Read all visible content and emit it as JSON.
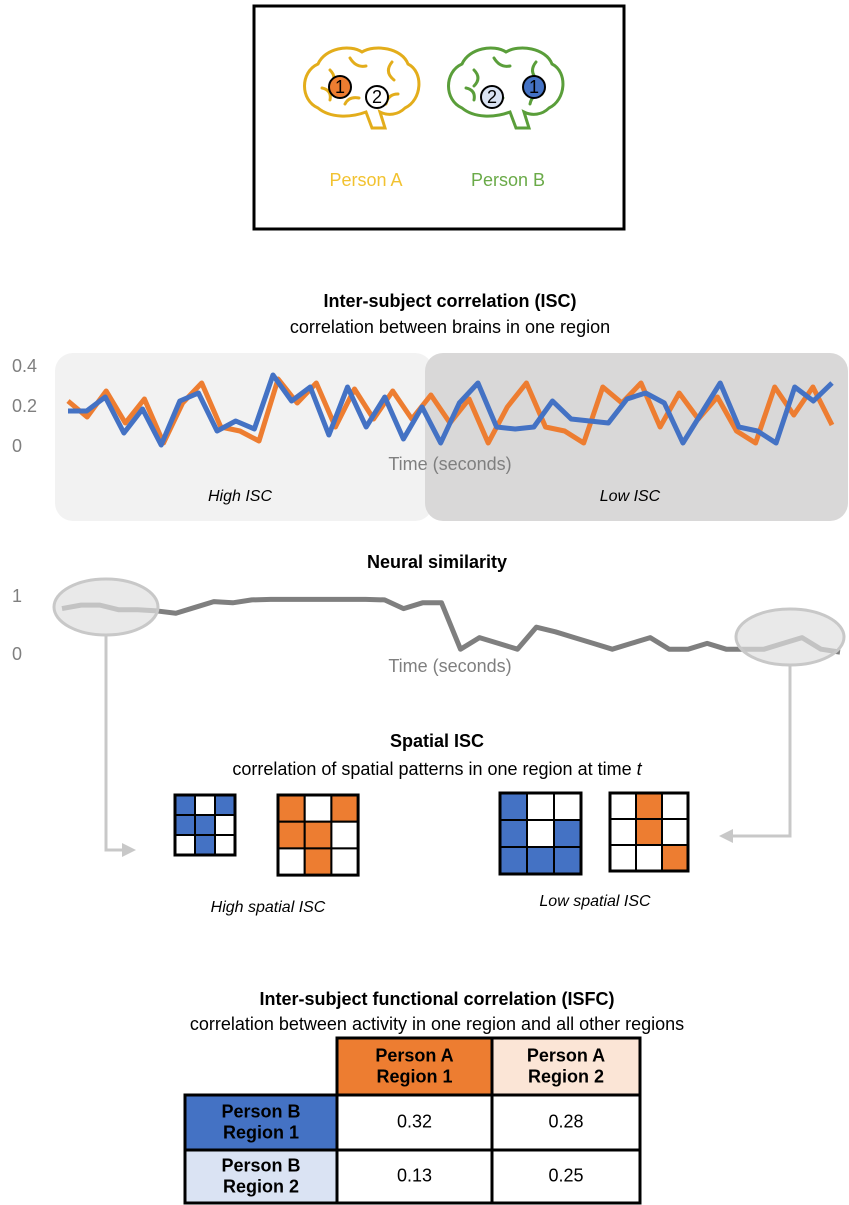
{
  "header": {
    "person_a": "Person A",
    "person_b": "Person B",
    "region_1": "1",
    "region_2": "2"
  },
  "chart_data": [
    {
      "type": "line",
      "title": "Inter-subject correlation (ISC)",
      "subtitle": "correlation between brains in one region",
      "x_label": "Time (seconds)",
      "ylim": [
        0,
        0.4
      ],
      "yticks": [
        0,
        0.2,
        0.4
      ],
      "regions": [
        "High ISC",
        "Low ISC"
      ],
      "series": [
        {
          "color": "#ed7d31",
          "values": [
            0.23,
            0.15,
            0.28,
            0.12,
            0.24,
            0.02,
            0.22,
            0.32,
            0.1,
            0.08,
            0.03,
            0.34,
            0.22,
            0.32,
            0.1,
            0.29,
            0.14,
            0.28,
            0.14,
            0.26,
            0.12,
            0.24,
            0.02,
            0.2,
            0.32,
            0.1,
            0.08,
            0.02,
            0.3,
            0.22,
            0.32,
            0.1,
            0.27,
            0.14,
            0.25,
            0.08,
            0.02,
            0.3,
            0.16,
            0.3,
            0.11
          ]
        },
        {
          "color": "#4472c4",
          "values": [
            0.18,
            0.18,
            0.25,
            0.07,
            0.19,
            0.01,
            0.23,
            0.27,
            0.08,
            0.13,
            0.09,
            0.36,
            0.23,
            0.3,
            0.06,
            0.3,
            0.1,
            0.25,
            0.04,
            0.2,
            0.02,
            0.22,
            0.32,
            0.1,
            0.09,
            0.1,
            0.23,
            0.14,
            0.13,
            0.12,
            0.24,
            0.27,
            0.22,
            0.02,
            0.17,
            0.32,
            0.1,
            0.08,
            0.02,
            0.3,
            0.23,
            0.32
          ]
        }
      ]
    },
    {
      "type": "line",
      "title": "Neural similarity",
      "x_label": "Time (seconds)",
      "ylim": [
        0,
        1
      ],
      "yticks": [
        0,
        1
      ],
      "series": [
        {
          "color": "#7f7f7f",
          "values": [
            0.8,
            0.86,
            0.86,
            0.78,
            0.78,
            0.76,
            0.72,
            0.82,
            0.92,
            0.9,
            0.95,
            0.96,
            0.96,
            0.96,
            0.96,
            0.96,
            0.96,
            0.95,
            0.8,
            0.9,
            0.9,
            0.1,
            0.3,
            0.2,
            0.1,
            0.48,
            0.4,
            0.3,
            0.2,
            0.1,
            0.2,
            0.3,
            0.1,
            0.1,
            0.2,
            0.1,
            0.1,
            0.1,
            0.2,
            0.3,
            0.1,
            0.05
          ]
        }
      ]
    }
  ],
  "spatial": {
    "title": "Spatial ISC",
    "subtitle": "correlation of spatial patterns in one region at time",
    "subtitle_variable": "t",
    "high_label": "High spatial ISC",
    "low_label": "Low spatial ISC"
  },
  "isfc": {
    "title": "Inter-subject functional correlation (ISFC)",
    "subtitle": "correlation between activity in one region and all other regions",
    "table": {
      "columns": [
        [
          "Person A",
          "Region 1"
        ],
        [
          "Person A",
          "Region 2"
        ]
      ],
      "rows": [
        {
          "label": [
            "Person B",
            "Region 1"
          ],
          "values": [
            "0.32",
            "0.28"
          ]
        },
        {
          "label": [
            "Person B",
            "Region 2"
          ],
          "values": [
            "0.13",
            "0.25"
          ]
        }
      ]
    }
  }
}
